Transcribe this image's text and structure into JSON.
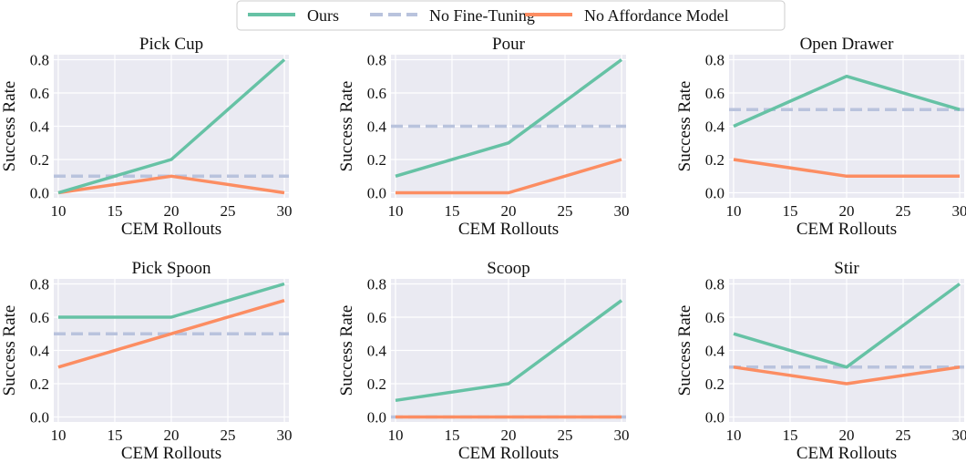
{
  "legend": {
    "entries": [
      {
        "label": "Ours",
        "color": "#66c2a5",
        "dashed": false
      },
      {
        "label": "No Fine-Tuning",
        "color": "#b9c3dd",
        "dashed": true
      },
      {
        "label": "No Affordance Model",
        "color": "#fc8d62",
        "dashed": false
      }
    ]
  },
  "chart_data": [
    {
      "type": "line",
      "title": "Pick Cup",
      "xlabel": "CEM Rollouts",
      "ylabel": "Success Rate",
      "x": [
        10,
        20,
        30
      ],
      "xticks": [
        "10",
        "15",
        "20",
        "25",
        "30"
      ],
      "yticks": [
        "0.0",
        "0.2",
        "0.4",
        "0.6",
        "0.8"
      ],
      "ylim": [
        0,
        0.8
      ],
      "series": [
        {
          "name": "Ours",
          "values": [
            0.0,
            0.2,
            0.8
          ]
        },
        {
          "name": "No Affordance Model",
          "values": [
            0.0,
            0.1,
            0.0
          ]
        }
      ],
      "baseline": {
        "name": "No Fine-Tuning",
        "value": 0.1
      }
    },
    {
      "type": "line",
      "title": "Pour",
      "xlabel": "CEM Rollouts",
      "ylabel": "Success Rate",
      "x": [
        10,
        20,
        30
      ],
      "xticks": [
        "10",
        "15",
        "20",
        "25",
        "30"
      ],
      "yticks": [
        "0.0",
        "0.2",
        "0.4",
        "0.6",
        "0.8"
      ],
      "ylim": [
        0,
        0.8
      ],
      "series": [
        {
          "name": "Ours",
          "values": [
            0.1,
            0.3,
            0.8
          ]
        },
        {
          "name": "No Affordance Model",
          "values": [
            0.0,
            0.0,
            0.2
          ]
        }
      ],
      "baseline": {
        "name": "No Fine-Tuning",
        "value": 0.4
      }
    },
    {
      "type": "line",
      "title": "Open Drawer",
      "xlabel": "CEM Rollouts",
      "ylabel": "Success Rate",
      "x": [
        10,
        20,
        30
      ],
      "xticks": [
        "10",
        "15",
        "20",
        "25",
        "30"
      ],
      "yticks": [
        "0.0",
        "0.2",
        "0.4",
        "0.6",
        "0.8"
      ],
      "ylim": [
        0,
        0.8
      ],
      "series": [
        {
          "name": "Ours",
          "values": [
            0.4,
            0.7,
            0.5
          ]
        },
        {
          "name": "No Affordance Model",
          "values": [
            0.2,
            0.1,
            0.1
          ]
        }
      ],
      "baseline": {
        "name": "No Fine-Tuning",
        "value": 0.5
      }
    },
    {
      "type": "line",
      "title": "Pick Spoon",
      "xlabel": "CEM Rollouts",
      "ylabel": "Success Rate",
      "x": [
        10,
        20,
        30
      ],
      "xticks": [
        "10",
        "15",
        "20",
        "25",
        "30"
      ],
      "yticks": [
        "0.0",
        "0.2",
        "0.4",
        "0.6",
        "0.8"
      ],
      "ylim": [
        0,
        0.8
      ],
      "series": [
        {
          "name": "Ours",
          "values": [
            0.6,
            0.6,
            0.8
          ]
        },
        {
          "name": "No Affordance Model",
          "values": [
            0.3,
            0.5,
            0.7
          ]
        }
      ],
      "baseline": {
        "name": "No Fine-Tuning",
        "value": 0.5
      }
    },
    {
      "type": "line",
      "title": "Scoop",
      "xlabel": "CEM Rollouts",
      "ylabel": "Success Rate",
      "x": [
        10,
        20,
        30
      ],
      "xticks": [
        "10",
        "15",
        "20",
        "25",
        "30"
      ],
      "yticks": [
        "0.0",
        "0.2",
        "0.4",
        "0.6",
        "0.8"
      ],
      "ylim": [
        0,
        0.8
      ],
      "series": [
        {
          "name": "Ours",
          "values": [
            0.1,
            0.2,
            0.7
          ]
        },
        {
          "name": "No Affordance Model",
          "values": [
            0.0,
            0.0,
            0.0
          ]
        }
      ],
      "baseline": {
        "name": "No Fine-Tuning",
        "value": 0.0
      }
    },
    {
      "type": "line",
      "title": "Stir",
      "xlabel": "CEM Rollouts",
      "ylabel": "Success Rate",
      "x": [
        10,
        20,
        30
      ],
      "xticks": [
        "10",
        "15",
        "20",
        "25",
        "30"
      ],
      "yticks": [
        "0.0",
        "0.2",
        "0.4",
        "0.6",
        "0.8"
      ],
      "ylim": [
        0,
        0.8
      ],
      "series": [
        {
          "name": "Ours",
          "values": [
            0.5,
            0.3,
            0.8
          ]
        },
        {
          "name": "No Affordance Model",
          "values": [
            0.3,
            0.2,
            0.3
          ]
        }
      ],
      "baseline": {
        "name": "No Fine-Tuning",
        "value": 0.3
      }
    }
  ]
}
